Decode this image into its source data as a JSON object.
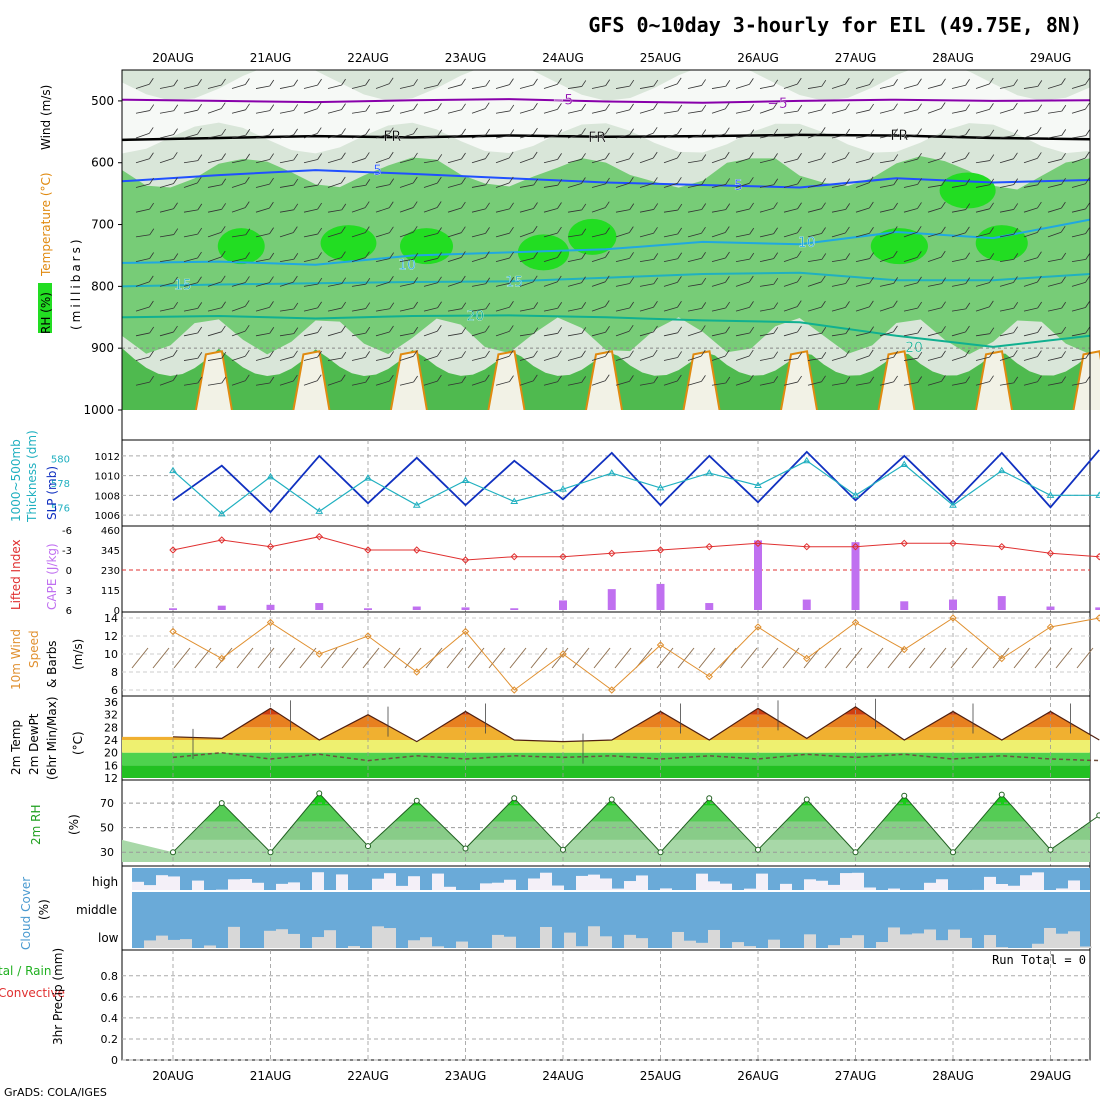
{
  "title": "GFS 0~10day 3-hourly for EIL (49.75E, 8N)",
  "credit": "GrADS: COLA/IGES",
  "run_total": "Run Total = 0",
  "colors": {
    "rh_green": "#22dd22",
    "rh_mid": "#77cc77",
    "rh_light": "#c8dcc8",
    "temp_purple": "#8800aa",
    "temp_blue": "#2050ff",
    "temp_cyan": "#20a8e0",
    "temp_teal": "#10b090",
    "temp_orange": "#e08a10",
    "slp_blue": "#1030c0",
    "thick_cyan": "#20b0c0",
    "li_red": "#e03030",
    "cape_purple": "#c070f0",
    "wind_orange": "#e09030",
    "barb_brown": "#907050",
    "cloud_blue": "#6aaad8"
  },
  "chart_data": [
    {
      "type": "heatmap",
      "name": "upper-air cross section",
      "x": [
        "20AUG",
        "21AUG",
        "22AUG",
        "23AUG",
        "24AUG",
        "25AUG",
        "26AUG",
        "27AUG",
        "28AUG",
        "29AUG"
      ],
      "ylabel": "(millibars)",
      "y_ticks": [
        500,
        600,
        700,
        800,
        900,
        1000
      ],
      "ylim": [
        1000,
        450
      ],
      "side_labels": [
        "RH (%)",
        "Temperature (°C)",
        "Wind (m/s)"
      ],
      "contour_labels": [
        {
          "t": "−5",
          "x": 4.0,
          "p": 498
        },
        {
          "t": "−5",
          "x": 6.2,
          "p": 503
        },
        {
          "t": "FR",
          "x": 2.25,
          "p": 557
        },
        {
          "t": "FR",
          "x": 4.35,
          "p": 558
        },
        {
          "t": "FR",
          "x": 7.45,
          "p": 555
        },
        {
          "t": "5",
          "x": 2.1,
          "p": 612
        },
        {
          "t": "5",
          "x": 5.8,
          "p": 636
        },
        {
          "t": "10",
          "x": 2.4,
          "p": 765
        },
        {
          "t": "10",
          "x": 6.5,
          "p": 728
        },
        {
          "t": "15",
          "x": 0.1,
          "p": 797
        },
        {
          "t": "15",
          "x": 3.5,
          "p": 792
        },
        {
          "t": "20",
          "x": 3.1,
          "p": 847
        },
        {
          "t": "20",
          "x": 7.6,
          "p": 898
        }
      ],
      "temp_contours": [
        {
          "label": "−5",
          "p": [
            498,
            500,
            502,
            499,
            497,
            501,
            503,
            500,
            498,
            500,
            499
          ]
        },
        {
          "label": "FR",
          "p": [
            563,
            560,
            557,
            559,
            556,
            558,
            557,
            555,
            556,
            560,
            562
          ]
        },
        {
          "label": "5",
          "p": [
            630,
            620,
            612,
            618,
            625,
            632,
            636,
            640,
            625,
            632,
            628
          ]
        },
        {
          "label": "10",
          "p": [
            762,
            760,
            765,
            750,
            745,
            740,
            728,
            732,
            712,
            722,
            692
          ]
        },
        {
          "label": "15",
          "p": [
            800,
            797,
            795,
            793,
            792,
            786,
            780,
            778,
            790,
            790,
            780
          ]
        },
        {
          "label": "20",
          "p": [
            850,
            848,
            852,
            848,
            847,
            850,
            855,
            858,
            880,
            898,
            880
          ]
        }
      ]
    },
    {
      "type": "line",
      "name": "SLP / thickness",
      "x": [
        0,
        0.5,
        1,
        1.5,
        2,
        2.5,
        3,
        3.5,
        4,
        4.5,
        5,
        5.5,
        6,
        6.5,
        7,
        7.5,
        8,
        8.5,
        9,
        9.5
      ],
      "series": [
        {
          "name": "SLP (mb)",
          "axis": "right",
          "values": [
            1007.5,
            1011.0,
            1006.3,
            1012.0,
            1007.2,
            1011.8,
            1007.0,
            1011.5,
            1007.6,
            1012.3,
            1007.0,
            1012.0,
            1007.3,
            1012.4,
            1007.5,
            1012.0,
            1007.2,
            1012.3,
            1006.8,
            1012.6
          ]
        },
        {
          "name": "Thickness 1000-500mb (dm)",
          "axis": "left",
          "values": [
            579.0,
            575.5,
            578.5,
            575.7,
            578.4,
            576.2,
            578.2,
            576.5,
            577.5,
            578.8,
            577.6,
            578.8,
            577.8,
            579.8,
            577.0,
            579.5,
            576.2,
            579.0,
            577.0,
            577.0
          ]
        }
      ],
      "y_ticks_right": [
        1006,
        1008,
        1010,
        1012
      ],
      "y_ticks_left": [
        576,
        578,
        580
      ],
      "ylabel_left": "Thickness 1000~500mb (dm)",
      "ylabel_right": "SLP (mb)"
    },
    {
      "type": "bar",
      "name": "CAPE and Lifted Index",
      "x": [
        0,
        0.5,
        1,
        1.5,
        2,
        2.5,
        3,
        3.5,
        4,
        4.5,
        5,
        5.5,
        6,
        6.5,
        7,
        7.5,
        8,
        8.5,
        9,
        9.5
      ],
      "cape": [
        10,
        25,
        30,
        40,
        10,
        20,
        15,
        10,
        55,
        120,
        150,
        40,
        400,
        60,
        390,
        50,
        60,
        80,
        20,
        15
      ],
      "lifted_index": [
        -3,
        -4.5,
        -3.5,
        -5,
        -3,
        -3,
        -1.5,
        -2,
        -2,
        -2.5,
        -3,
        -3.5,
        -4,
        -3.5,
        -3.5,
        -4,
        -4,
        -3.5,
        -2.5,
        -2
      ],
      "y_ticks_left": [
        -6,
        -3,
        0,
        3,
        6
      ],
      "y_ticks_right": [
        0,
        115,
        230,
        345,
        460
      ],
      "ylabel_left": "Lifted Index",
      "ylabel_right": "CAPE (J/kg)"
    },
    {
      "type": "line",
      "name": "10m wind",
      "x": [
        0,
        0.5,
        1,
        1.5,
        2,
        2.5,
        3,
        3.5,
        4,
        4.5,
        5,
        5.5,
        6,
        6.5,
        7,
        7.5,
        8,
        8.5,
        9,
        9.5
      ],
      "series": [
        {
          "name": "10m Wind Speed (m/s)",
          "values": [
            12.5,
            9.5,
            13.5,
            10.0,
            12.0,
            8.0,
            12.5,
            6.0,
            10.0,
            6.0,
            11.0,
            7.5,
            13.0,
            9.5,
            13.5,
            10.5,
            14.0,
            9.5,
            13.0,
            14.0
          ]
        }
      ],
      "y_ticks": [
        6,
        8,
        10,
        12,
        14
      ],
      "ylabel": "10m Wind Speed & Barbs (m/s)"
    },
    {
      "type": "area",
      "name": "2m temperature",
      "x": [
        0,
        0.5,
        1,
        1.5,
        2,
        2.5,
        3,
        3.5,
        4,
        4.5,
        5,
        5.5,
        6,
        6.5,
        7,
        7.5,
        8,
        8.5,
        9,
        9.5
      ],
      "series": [
        {
          "name": "2m Temp (°C)",
          "values": [
            25,
            24.5,
            34,
            24,
            32,
            23.5,
            33,
            24,
            23.5,
            24,
            33,
            24,
            34,
            24.5,
            34.5,
            24,
            33,
            24,
            33,
            24
          ]
        },
        {
          "name": "2m DewPt (°C)",
          "values": [
            18.5,
            20,
            18,
            19.5,
            17.5,
            19,
            18,
            19,
            18.5,
            19,
            18,
            19,
            18,
            19.5,
            18.5,
            19.5,
            18,
            19,
            18,
            17.5
          ]
        }
      ],
      "y_ticks": [
        12,
        16,
        20,
        24,
        28,
        32,
        36
      ],
      "ylabel": "2m Temp 2m DewPt (6hr Min/Max) (°C)"
    },
    {
      "type": "area",
      "name": "2m relative humidity",
      "x": [
        0,
        0.5,
        1,
        1.5,
        2,
        2.5,
        3,
        3.5,
        4,
        4.5,
        5,
        5.5,
        6,
        6.5,
        7,
        7.5,
        8,
        8.5,
        9,
        9.5
      ],
      "series": [
        {
          "name": "2m RH (%)",
          "values": [
            30,
            70,
            30,
            78,
            35,
            72,
            33,
            74,
            32,
            73,
            30,
            74,
            32,
            73,
            30,
            76,
            30,
            77,
            32,
            60
          ]
        }
      ],
      "y_ticks": [
        30,
        50,
        70
      ],
      "ylabel": "2m RH (%)"
    },
    {
      "type": "bar",
      "name": "cloud cover",
      "layers": [
        "high",
        "middle",
        "low"
      ],
      "ylabel": "Cloud Cover (%)"
    },
    {
      "type": "bar",
      "name": "3hr precipitation",
      "y_ticks": [
        0,
        0.2,
        0.4,
        0.6,
        0.8
      ],
      "ylabel": "3hr Precip (mm)",
      "legend": [
        "Total / Rain",
        "Convective"
      ],
      "values": []
    }
  ],
  "labels": {
    "rh": "RH (%)",
    "temperature": "Temperature (°C)",
    "wind": "Wind (m/s)",
    "millibars": "(millibars)",
    "thickness1": "1000~500mb",
    "thickness2": "Thickness (dm)",
    "slp": "SLP (mb)",
    "li": "Lifted Index",
    "cape": "CAPE (J/kg)",
    "wind10a": "10m Wind",
    "wind10b": "Speed",
    "wind10c": "& Barbs",
    "wind10d": "(m/s)",
    "t2a": "2m Temp",
    "t2b": "2m DewPt",
    "t2c": "(6hr Min/Max)",
    "t2d": "(°C)",
    "rh2a": "2m RH",
    "rh2b": "(%)",
    "cloud": "Cloud Cover",
    "cloud_pct": "(%)",
    "high": "high",
    "middle": "middle",
    "low": "low",
    "precip_a": "tal / Rain",
    "precip_b": "Convective",
    "precip_c": "3hr Precip (mm)"
  }
}
